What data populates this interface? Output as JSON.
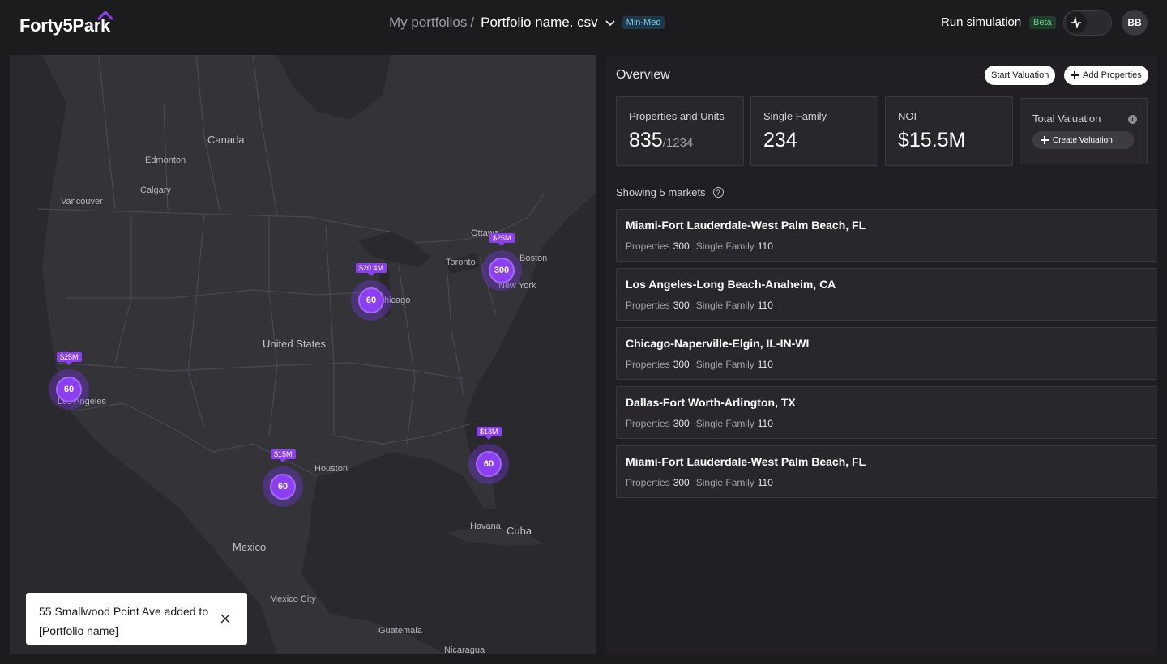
{
  "header": {
    "logo_text": "Forty5Park",
    "breadcrumb_parent": "My portfolios",
    "breadcrumb_sep": "/",
    "portfolio_name": "Portfolio name. csv",
    "portfolio_tag": "Min-Med",
    "run_simulation": "Run simulation",
    "beta_badge": "Beta",
    "avatar_initials": "BB"
  },
  "map": {
    "labels": {
      "canada": "Canada",
      "edmonton": "Edmonton",
      "calgary": "Calgary",
      "vancouver": "Vancouver",
      "ottawa": "Ottawa",
      "toronto": "Toronto",
      "boston": "Boston",
      "new_york": "New York",
      "chicago": "Chicago",
      "united_states": "United States",
      "los_angeles": "Los Angeles",
      "houston": "Houston",
      "havana": "Havana",
      "cuba": "Cuba",
      "mexico": "Mexico",
      "mexico_city": "Mexico City",
      "guatemala": "Guatemala",
      "nicaragua": "Nicaragua"
    },
    "clusters": [
      {
        "value": "$25M",
        "count": "300"
      },
      {
        "value": "$20.4M",
        "count": "60"
      },
      {
        "value": "$25M",
        "count": "60"
      },
      {
        "value": "$15M",
        "count": "60"
      },
      {
        "value": "$13M",
        "count": "60"
      }
    ]
  },
  "toast": {
    "message": "55 Smallwood Point Ave added to [Portfolio name]"
  },
  "overview": {
    "title": "Overview",
    "start_valuation": "Start Valuation",
    "add_properties": "Add Properties",
    "cards": {
      "properties_label": "Properties and Units",
      "properties_value": "835",
      "properties_total": "/1234",
      "single_family_label": "Single Family",
      "single_family_value": "234",
      "noi_label": "NOI",
      "noi_value": "$15.5M",
      "total_valuation_label": "Total Valuation",
      "info_icon_glyph": "i",
      "create_valuation": "Create Valuation"
    },
    "showing_text": "Showing 5 markets",
    "help_glyph": "?",
    "stat_labels": {
      "properties": "Properties",
      "single_family": "Single Family"
    },
    "markets": [
      {
        "name": "Miami-Fort Lauderdale-West Palm Beach, FL",
        "properties": "300",
        "single_family": "110"
      },
      {
        "name": "Los Angeles-Long Beach-Anaheim, CA",
        "properties": "300",
        "single_family": "110"
      },
      {
        "name": "Chicago-Naperville-Elgin, IL-IN-WI",
        "properties": "300",
        "single_family": "110"
      },
      {
        "name": "Dallas-Fort Worth-Arlington, TX",
        "properties": "300",
        "single_family": "110"
      },
      {
        "name": "Miami-Fort Lauderdale-West Palm Beach, FL",
        "properties": "300",
        "single_family": "110"
      }
    ]
  },
  "colors": {
    "accent": "#8b3ff0",
    "background": "#1c1b1e",
    "panel": "#211f24",
    "card": "#29272c"
  }
}
